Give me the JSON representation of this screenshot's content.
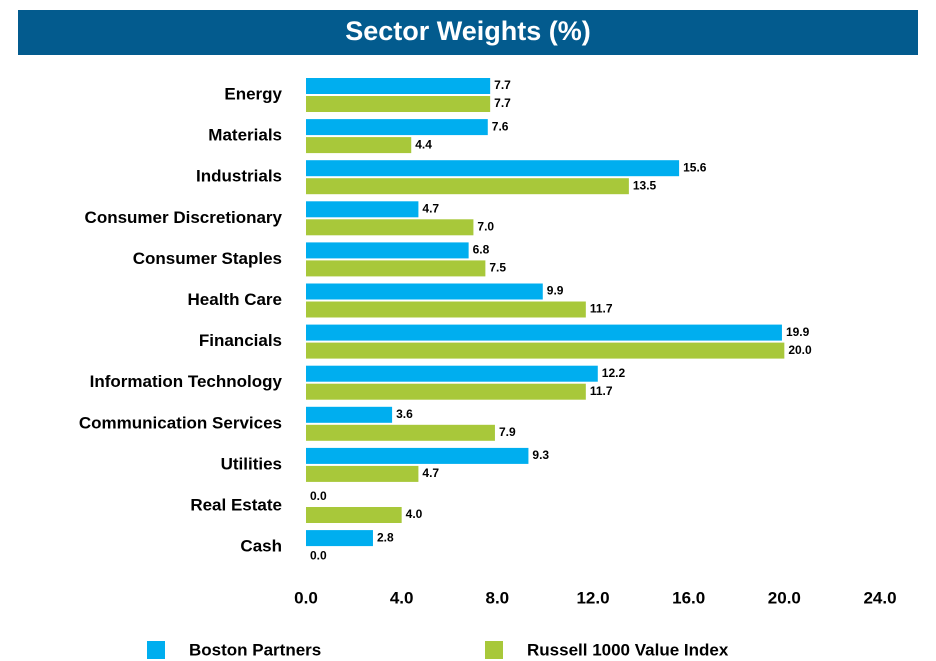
{
  "chart_data": {
    "type": "hbar",
    "title": "Sector Weights (%)",
    "categories": [
      "Energy",
      "Materials",
      "Industrials",
      "Consumer Discretionary",
      "Consumer Staples",
      "Health Care",
      "Financials",
      "Information Technology",
      "Communication Services",
      "Utilities",
      "Real Estate",
      "Cash"
    ],
    "series": [
      {
        "name": "Boston Partners",
        "color": "#00aeef",
        "values": [
          7.7,
          7.6,
          15.6,
          4.7,
          6.8,
          9.9,
          19.9,
          12.2,
          3.6,
          9.3,
          0,
          2.8
        ],
        "value_labels": [
          "7.7",
          "7.6",
          "15.6",
          "4.7",
          "6.8",
          "9.9",
          "19.9",
          "12.2",
          "3.6",
          "9.3",
          "0.0",
          "2.8"
        ]
      },
      {
        "name": "Russell 1000 Value Index",
        "color": "#a8c83a",
        "values": [
          7.7,
          4.4,
          13.5,
          7.0,
          7.5,
          11.7,
          20.0,
          11.7,
          7.9,
          4.7,
          4.0,
          0
        ],
        "value_labels": [
          "7.7",
          "4.4",
          "13.5",
          "7.0",
          "7.5",
          "11.7",
          "20.0",
          "11.7",
          "7.9",
          "4.7",
          "4.0",
          "0.0"
        ]
      }
    ],
    "xlim": [
      0,
      24
    ],
    "xticks": [
      {
        "value": 0,
        "label": "0.0"
      },
      {
        "value": 4,
        "label": "4.0"
      },
      {
        "value": 8,
        "label": "8.0"
      },
      {
        "value": 12,
        "label": "12.0"
      },
      {
        "value": 16,
        "label": "16.0"
      },
      {
        "value": 20,
        "label": "20.0"
      },
      {
        "value": 24,
        "label": "24.0"
      }
    ],
    "legend": "bottom"
  }
}
